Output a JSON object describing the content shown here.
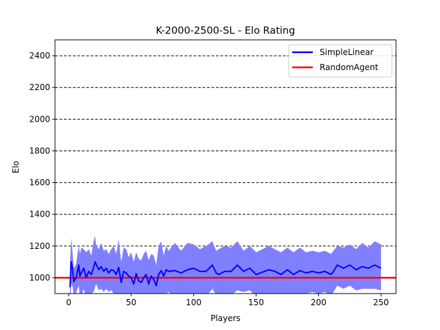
{
  "chart_data": {
    "type": "line",
    "title": "K-2000-2500-SL - Elo Rating",
    "xlabel": "Players",
    "ylabel": "Elo",
    "xlim": [
      -11,
      262
    ],
    "ylim": [
      900,
      2500
    ],
    "xticks": [
      0,
      50,
      100,
      150,
      200,
      250
    ],
    "yticks": [
      1000,
      1200,
      1400,
      1600,
      1800,
      2000,
      2200,
      2400
    ],
    "grid": "horizontal dashed",
    "legend_position": "top-right",
    "series": [
      {
        "name": "SimpleLinear",
        "color": "#0000ff",
        "band_color": "#8080ff",
        "x": [
          1,
          2,
          3,
          4,
          5,
          6,
          7,
          8,
          9,
          10,
          12,
          14,
          16,
          18,
          20,
          21,
          22,
          24,
          26,
          28,
          30,
          32,
          34,
          36,
          38,
          40,
          42,
          44,
          46,
          48,
          50,
          52,
          54,
          56,
          58,
          60,
          62,
          64,
          66,
          68,
          70,
          72,
          74,
          76,
          78,
          80,
          85,
          90,
          95,
          100,
          105,
          110,
          115,
          118,
          120,
          125,
          130,
          135,
          140,
          145,
          150,
          155,
          160,
          165,
          170,
          175,
          180,
          185,
          190,
          195,
          200,
          205,
          210,
          212,
          215,
          220,
          225,
          230,
          235,
          240,
          245,
          250
        ],
        "values": [
          940,
          1100,
          1060,
          975,
          990,
          1000,
          1040,
          1080,
          1010,
          1030,
          1060,
          1000,
          1040,
          1020,
          1065,
          1100,
          1085,
          1050,
          1070,
          1040,
          1060,
          1030,
          1050,
          1045,
          1020,
          1065,
          970,
          1040,
          1030,
          1010,
          1000,
          960,
          1025,
          980,
          970,
          1000,
          1020,
          960,
          1010,
          990,
          950,
          1020,
          1045,
          1010,
          1050,
          1040,
          1045,
          1030,
          1050,
          1060,
          1040,
          1040,
          1080,
          1030,
          1020,
          1040,
          1040,
          1080,
          1040,
          1060,
          1020,
          1035,
          1050,
          1040,
          1020,
          1050,
          1020,
          1045,
          1030,
          1040,
          1030,
          1040,
          1020,
          1040,
          1080,
          1060,
          1080,
          1050,
          1070,
          1060,
          1080,
          1060
        ],
        "upper": [
          1090,
          1250,
          1170,
          1060,
          1070,
          1090,
          1150,
          1200,
          1150,
          1190,
          1180,
          1160,
          1180,
          1140,
          1230,
          1265,
          1200,
          1180,
          1220,
          1170,
          1180,
          1150,
          1180,
          1200,
          1150,
          1240,
          1100,
          1190,
          1180,
          1130,
          1160,
          1100,
          1160,
          1120,
          1110,
          1150,
          1170,
          1110,
          1150,
          1140,
          1080,
          1200,
          1230,
          1140,
          1200,
          1170,
          1220,
          1170,
          1220,
          1210,
          1180,
          1200,
          1230,
          1170,
          1180,
          1200,
          1190,
          1230,
          1170,
          1200,
          1160,
          1180,
          1200,
          1180,
          1160,
          1190,
          1160,
          1190,
          1160,
          1170,
          1160,
          1170,
          1150,
          1170,
          1200,
          1190,
          1210,
          1180,
          1220,
          1190,
          1230,
          1210
        ],
        "lower": [
          800,
          960,
          950,
          890,
          900,
          905,
          930,
          950,
          880,
          880,
          930,
          850,
          900,
          900,
          910,
          940,
          960,
          920,
          930,
          910,
          930,
          910,
          920,
          900,
          890,
          890,
          840,
          900,
          880,
          880,
          860,
          830,
          880,
          840,
          830,
          860,
          880,
          820,
          870,
          840,
          820,
          850,
          860,
          880,
          900,
          910,
          880,
          890,
          880,
          900,
          900,
          880,
          930,
          890,
          870,
          880,
          890,
          920,
          910,
          920,
          880,
          900,
          900,
          900,
          880,
          900,
          880,
          900,
          900,
          910,
          900,
          910,
          890,
          910,
          950,
          930,
          950,
          920,
          930,
          930,
          930,
          920
        ]
      },
      {
        "name": "RandomAgent",
        "color": "#ff0000",
        "x": [
          -11,
          262
        ],
        "values": [
          1000,
          1000
        ]
      }
    ]
  }
}
